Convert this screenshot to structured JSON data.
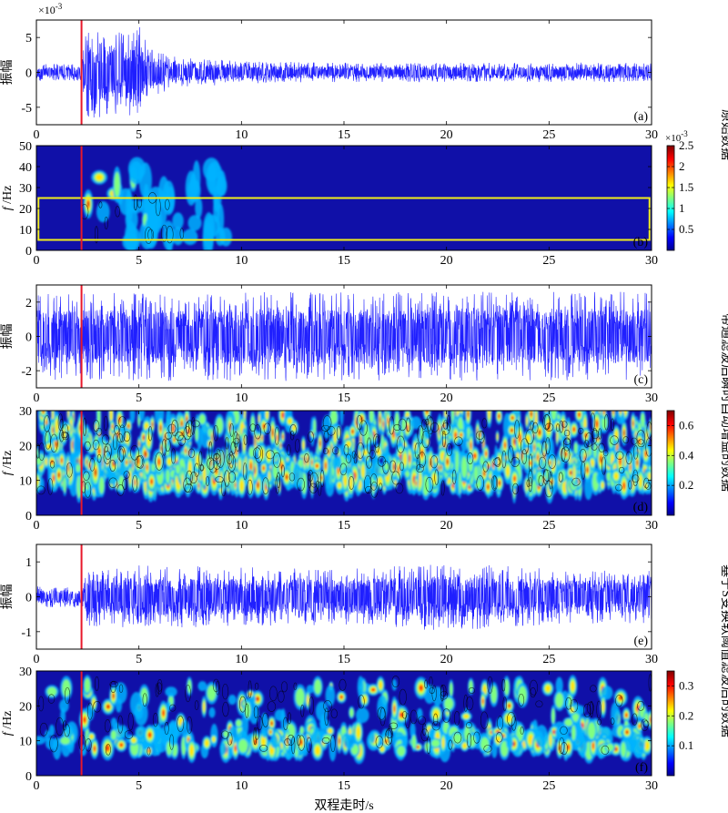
{
  "figure": {
    "xlabel": "双程走时/s",
    "group_labels": [
      "原始数据",
      "带通滤波后瞬时自动增益的数据",
      "基于S变换软阈值滤波后的数据"
    ],
    "marker_time_s": 2.2,
    "marker_color": "#e8182a",
    "box_color": "#f2ee1d"
  },
  "chart_data": [
    {
      "id": "a",
      "type": "line",
      "tag": "(a)",
      "ylabel": "振幅",
      "exponent_label": "×10-3",
      "xlim": [
        0,
        30
      ],
      "ylim": [
        -7.5,
        7.5
      ],
      "xticks": [
        0,
        5,
        10,
        15,
        20,
        25,
        30
      ],
      "yticks": [
        -5,
        0,
        5
      ],
      "line_color": "#1f1fff",
      "envelope": {
        "time_s": [
          0,
          2.2,
          2.4,
          3,
          4,
          5,
          5.5,
          7,
          10,
          15,
          20,
          25,
          30
        ],
        "amplitude": [
          1.2,
          1.2,
          6.5,
          6.5,
          6,
          6.8,
          3.5,
          2.2,
          1.6,
          1.4,
          1.4,
          1.4,
          1.4
        ]
      }
    },
    {
      "id": "b",
      "type": "heatmap",
      "tag": "(b)",
      "ylabel": "f /Hz",
      "xlim": [
        0,
        30
      ],
      "ylim": [
        0,
        50
      ],
      "xticks": [
        0,
        5,
        10,
        15,
        20,
        25,
        30
      ],
      "yticks": [
        0,
        10,
        20,
        30,
        40,
        50
      ],
      "colorbar": {
        "min": 0,
        "max": 2.5,
        "ticks": [
          0.5,
          1,
          1.5,
          2,
          2.5
        ],
        "exponent_label": "×10-3"
      },
      "box": {
        "t0": 0.1,
        "t1": 29.9,
        "f0": 5,
        "f1": 25
      }
    },
    {
      "id": "c",
      "type": "line",
      "tag": "(c)",
      "ylabel": "振幅",
      "xlim": [
        0,
        30
      ],
      "ylim": [
        -3,
        3
      ],
      "xticks": [
        0,
        5,
        10,
        15,
        20,
        25,
        30
      ],
      "yticks": [
        -2,
        0,
        2
      ],
      "line_color": "#1f1fff",
      "envelope": {
        "time_s": [
          0,
          30
        ],
        "amplitude": [
          2.6,
          2.6
        ]
      }
    },
    {
      "id": "d",
      "type": "heatmap",
      "tag": "(d)",
      "ylabel": "f /Hz",
      "xlim": [
        0,
        30
      ],
      "ylim": [
        0,
        30
      ],
      "xticks": [
        0,
        5,
        10,
        15,
        20,
        25,
        30
      ],
      "yticks": [
        0,
        10,
        20,
        30
      ],
      "colorbar": {
        "min": 0,
        "max": 0.7,
        "ticks": [
          0.2,
          0.4,
          0.6
        ]
      }
    },
    {
      "id": "e",
      "type": "line",
      "tag": "(e)",
      "ylabel": "振幅",
      "xlim": [
        0,
        30
      ],
      "ylim": [
        -1.5,
        1.5
      ],
      "xticks": [
        0,
        5,
        10,
        15,
        20,
        25,
        30
      ],
      "yticks": [
        -1,
        0,
        1
      ],
      "line_color": "#1f1fff",
      "envelope": {
        "time_s": [
          0,
          2.2,
          2.5,
          5,
          10,
          15,
          20,
          25,
          30
        ],
        "amplitude": [
          0.3,
          0.3,
          0.85,
          0.9,
          0.85,
          0.8,
          1.0,
          0.8,
          0.75
        ]
      }
    },
    {
      "id": "f",
      "type": "heatmap",
      "tag": "(f)",
      "ylabel": "f /Hz",
      "xlim": [
        0,
        30
      ],
      "ylim": [
        0,
        30
      ],
      "xticks": [
        0,
        5,
        10,
        15,
        20,
        25,
        30
      ],
      "yticks": [
        0,
        10,
        20,
        30
      ],
      "colorbar": {
        "min": 0,
        "max": 0.35,
        "ticks": [
          0.1,
          0.2,
          0.3
        ]
      }
    }
  ]
}
